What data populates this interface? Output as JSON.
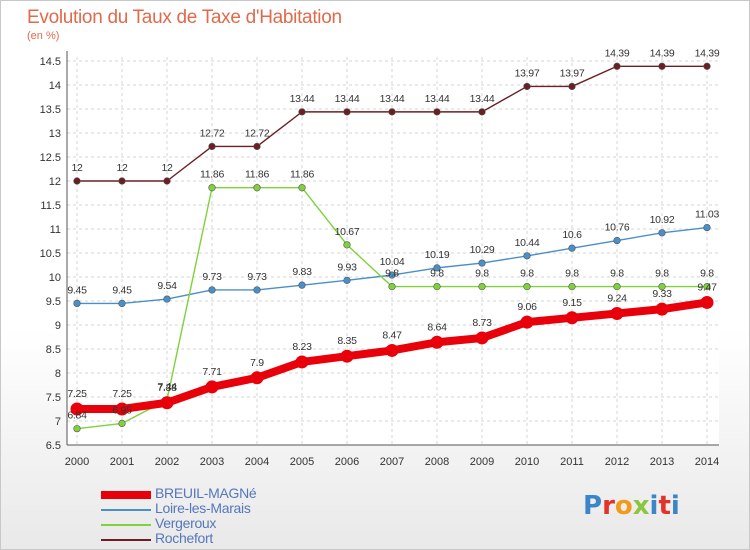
{
  "header": {
    "title": "Evolution du Taux de Taxe d'Habitation",
    "unit": "(en %)"
  },
  "logo": {
    "text": "Proxiti"
  },
  "chart_data": {
    "type": "line",
    "title": "Evolution du Taux de Taxe d'Habitation",
    "ylabel": "(en %)",
    "xlabel": "",
    "ylim": [
      6.5,
      14.5
    ],
    "yticks": [
      6.5,
      7,
      7.5,
      8,
      8.5,
      9,
      9.5,
      10,
      10.5,
      11,
      11.5,
      12,
      12.5,
      13,
      13.5,
      14,
      14.5
    ],
    "x": [
      "2000",
      "2001",
      "2002",
      "2003",
      "2004",
      "2005",
      "2006",
      "2007",
      "2008",
      "2009",
      "2010",
      "2011",
      "2012",
      "2013",
      "2014"
    ],
    "grid": true,
    "legend_position": "bottom-left",
    "series": [
      {
        "name": "BREUIL-MAGNé",
        "color": "#e8000a",
        "bold": true,
        "values": [
          7.25,
          7.25,
          7.38,
          7.71,
          7.9,
          8.23,
          8.35,
          8.47,
          8.64,
          8.73,
          9.06,
          9.15,
          9.24,
          9.33,
          9.47
        ]
      },
      {
        "name": "Loire-les-Marais",
        "color": "#4a90c8",
        "bold": false,
        "values": [
          9.45,
          9.45,
          9.54,
          9.73,
          9.73,
          9.83,
          9.93,
          10.04,
          10.19,
          10.29,
          10.44,
          10.6,
          10.76,
          10.92,
          11.03
        ]
      },
      {
        "name": "Vergeroux",
        "color": "#7fd23a",
        "bold": false,
        "values": [
          6.84,
          6.95,
          7.44,
          11.86,
          11.86,
          11.86,
          10.67,
          9.8,
          9.8,
          9.8,
          9.8,
          9.8,
          9.8,
          9.8,
          9.8
        ]
      },
      {
        "name": "Rochefort",
        "color": "#6b1f22",
        "bold": false,
        "values": [
          12,
          12,
          12,
          12.72,
          12.72,
          13.44,
          13.44,
          13.44,
          13.44,
          13.44,
          13.97,
          13.97,
          14.39,
          14.39,
          14.39
        ]
      }
    ]
  }
}
